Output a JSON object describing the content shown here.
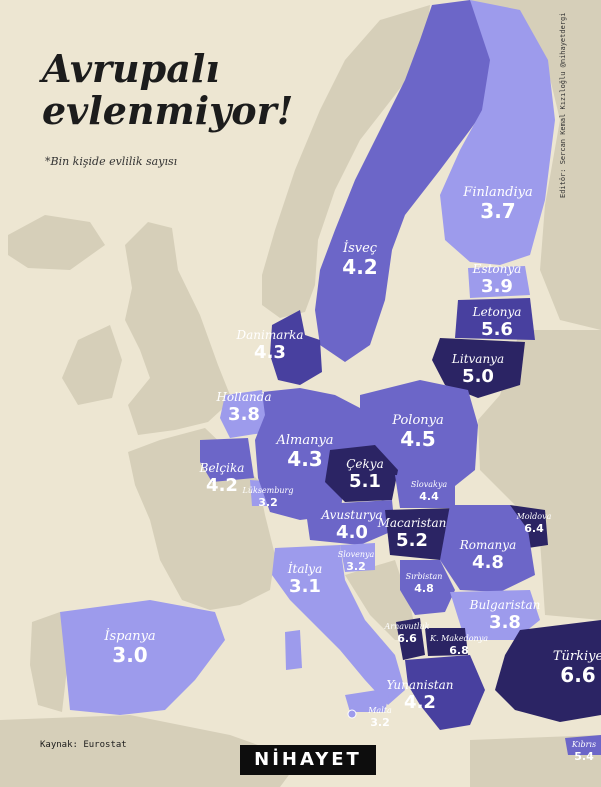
{
  "title_line1": "Avrupalı",
  "title_line2": "evlenmiyor!",
  "subtitle": "*Bin kişide evlilik sayısı",
  "credit": "Editör: Sercan Kemal Kızıloğlu  @nihayetdergi",
  "source": "Kaynak: Eurostat",
  "brand": "NİHAYET",
  "colors": {
    "background": "#ede6d2",
    "sea": "#ede6d2",
    "land": "#d6cfb9",
    "light": "#9d9bec",
    "medium": "#6c66c8",
    "dark": "#48409f",
    "darkest": "#2b2464"
  },
  "countries": [
    {
      "id": "finlandiya",
      "name": "Finlandiya",
      "value": "3.7"
    },
    {
      "id": "isvec",
      "name": "İsveç",
      "value": "4.2"
    },
    {
      "id": "estonya",
      "name": "Estonya",
      "value": "3.9"
    },
    {
      "id": "letonya",
      "name": "Letonya",
      "value": "5.6"
    },
    {
      "id": "litvanya",
      "name": "Litvanya",
      "value": "5.0"
    },
    {
      "id": "danimarka",
      "name": "Danimarka",
      "value": "4.3"
    },
    {
      "id": "hollanda",
      "name": "Hollanda",
      "value": "3.8"
    },
    {
      "id": "belcika",
      "name": "Belçika",
      "value": "4.2"
    },
    {
      "id": "luksemburg",
      "name": "Lüksemburg",
      "value": "3.2"
    },
    {
      "id": "almanya",
      "name": "Almanya",
      "value": "4.3"
    },
    {
      "id": "polonya",
      "name": "Polonya",
      "value": "4.5"
    },
    {
      "id": "cekya",
      "name": "Çekya",
      "value": "5.1"
    },
    {
      "id": "slovakya",
      "name": "Slovakya",
      "value": "4.4"
    },
    {
      "id": "avusturya",
      "name": "Avusturya",
      "value": "4.0"
    },
    {
      "id": "macaristan",
      "name": "Macaristan",
      "value": "5.2"
    },
    {
      "id": "moldova",
      "name": "Moldova",
      "value": "6.4"
    },
    {
      "id": "romanya",
      "name": "Romanya",
      "value": "4.8"
    },
    {
      "id": "slovenya",
      "name": "Slovenya",
      "value": "3.2"
    },
    {
      "id": "italya",
      "name": "İtalya",
      "value": "3.1"
    },
    {
      "id": "sirbistan",
      "name": "Sırbistan",
      "value": "4.8"
    },
    {
      "id": "bulgaristan",
      "name": "Bulgaristan",
      "value": "3.8"
    },
    {
      "id": "arnavutluk",
      "name": "Arnavutluk",
      "value": "6.6"
    },
    {
      "id": "k-makedonya",
      "name": "K. Makedonya",
      "value": "6.8"
    },
    {
      "id": "ispanya",
      "name": "İspanya",
      "value": "3.0"
    },
    {
      "id": "turkiye",
      "name": "Türkiye",
      "value": "6.6"
    },
    {
      "id": "yunanistan",
      "name": "Yunanistan",
      "value": "4.2"
    },
    {
      "id": "malta",
      "name": "Malta",
      "value": "3.2"
    },
    {
      "id": "kibris",
      "name": "Kıbrıs",
      "value": "5.4"
    }
  ]
}
